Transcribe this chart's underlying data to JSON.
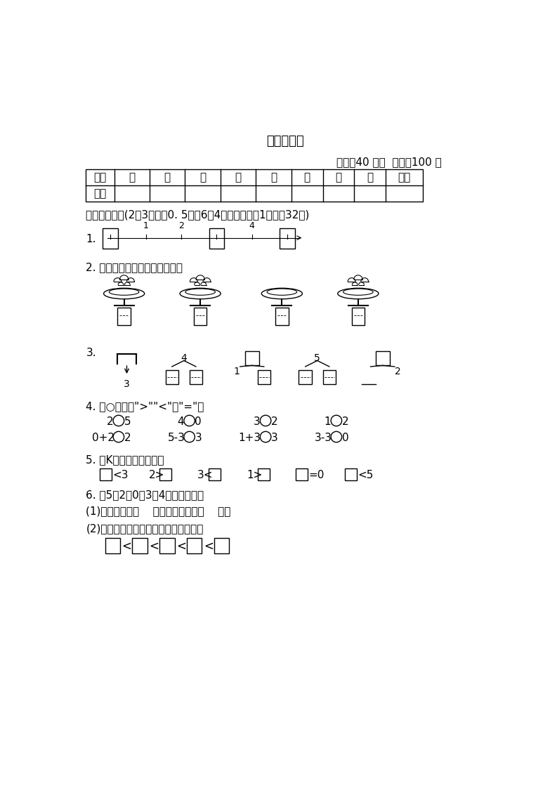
{
  "title": "期中检测卷",
  "time_info": "时间：40 分钟  满分：100 分",
  "table_headers": [
    "题号",
    "一",
    "二",
    "三",
    "四",
    "五",
    "六",
    "七",
    "八",
    "总分"
  ],
  "section1_title": "一、填一填。(2、3题每空0. 5分，6题4分，其余每空1分，共32分)",
  "q4_label": "4. 在○里填上\">\"\"<\"或\"=\"。",
  "q5_label": "5. 在K里填上合适的数。",
  "q6_label": "6. 在5、2、0、3、4这几个数中。",
  "q6_1": "(1)最大的数是（    ），最小的数是（    ）。",
  "q6_2": "(2)把这些数按从小到大的顺序排一排。",
  "bg_color": "#ffffff",
  "text_color": "#000000"
}
